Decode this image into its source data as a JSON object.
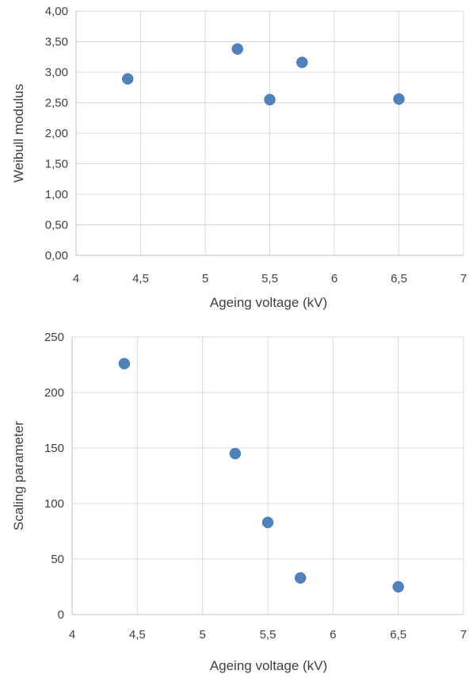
{
  "chart_data": [
    {
      "type": "scatter",
      "xlabel": "Ageing voltage (kV)",
      "ylabel": "Weibull modulus",
      "xlim": [
        4,
        7
      ],
      "ylim": [
        0,
        4
      ],
      "grid": true,
      "x_ticks": [
        "4",
        "4,5",
        "5",
        "5,5",
        "6",
        "6,5",
        "7"
      ],
      "y_ticks": [
        "0,00",
        "0,50",
        "1,00",
        "1,50",
        "2,00",
        "2,50",
        "3,00",
        "3,50",
        "4,00"
      ],
      "series": [
        {
          "color": "#4f81bd",
          "x": [
            4.4,
            5.25,
            5.5,
            5.75,
            6.5
          ],
          "y": [
            2.89,
            3.38,
            2.55,
            3.16,
            2.56
          ]
        }
      ]
    },
    {
      "type": "scatter",
      "xlabel": "Ageing voltage (kV)",
      "ylabel": "Scaling parameter",
      "xlim": [
        4,
        7
      ],
      "ylim": [
        0,
        250
      ],
      "grid": true,
      "x_ticks": [
        "4",
        "4,5",
        "5",
        "5,5",
        "6",
        "6,5",
        "7"
      ],
      "y_ticks": [
        "0",
        "50",
        "100",
        "150",
        "200",
        "250"
      ],
      "series": [
        {
          "color": "#4f81bd",
          "x": [
            4.4,
            5.25,
            5.5,
            5.75,
            6.5
          ],
          "y": [
            226,
            145,
            83,
            33,
            25
          ]
        }
      ]
    }
  ]
}
